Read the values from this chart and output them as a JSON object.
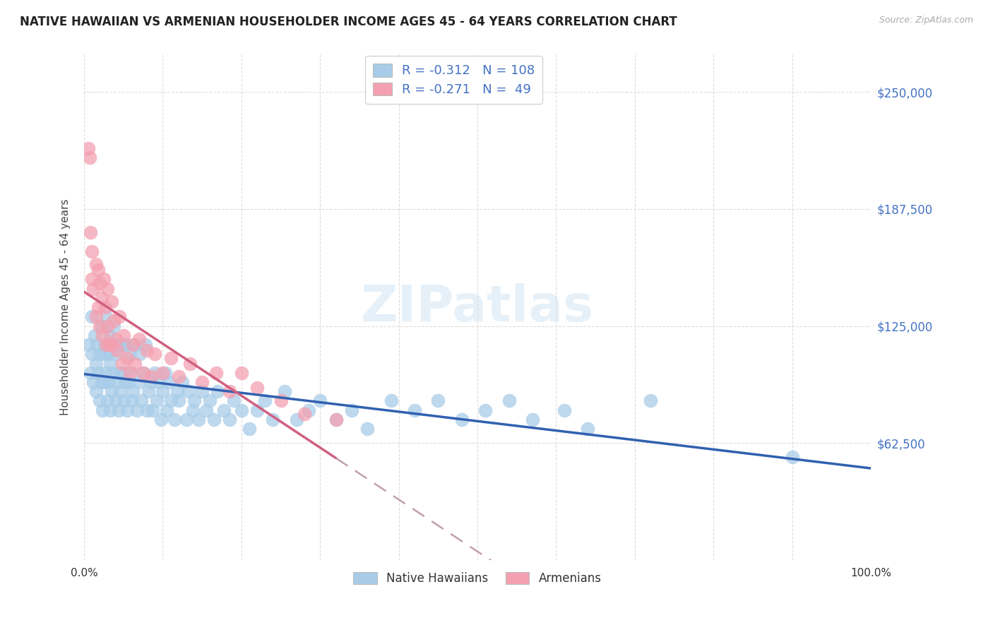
{
  "title": "NATIVE HAWAIIAN VS ARMENIAN HOUSEHOLDER INCOME AGES 45 - 64 YEARS CORRELATION CHART",
  "source": "Source: ZipAtlas.com",
  "ylabel": "Householder Income Ages 45 - 64 years",
  "ytick_labels": [
    "$62,500",
    "$125,000",
    "$187,500",
    "$250,000"
  ],
  "ytick_values": [
    62500,
    125000,
    187500,
    250000
  ],
  "ylim": [
    0,
    270000
  ],
  "xlim": [
    0,
    1
  ],
  "watermark": "ZIPatlas",
  "blue_scatter_color": "#a8cce8",
  "blue_edge_color": "#7ab0d4",
  "pink_scatter_color": "#f4a0b0",
  "pink_edge_color": "#e07090",
  "blue_line_color": "#3060b0",
  "pink_line_color": "#d06080",
  "pink_dash_color": "#c0a0a8",
  "legend_text_color": "#4472c4",
  "r_nh": -0.312,
  "n_nh": 108,
  "r_ar": -0.271,
  "n_ar": 49,
  "nh_x": [
    0.005,
    0.008,
    0.01,
    0.01,
    0.012,
    0.013,
    0.015,
    0.015,
    0.016,
    0.018,
    0.02,
    0.02,
    0.022,
    0.022,
    0.023,
    0.025,
    0.025,
    0.026,
    0.027,
    0.028,
    0.03,
    0.03,
    0.031,
    0.032,
    0.033,
    0.033,
    0.035,
    0.035,
    0.036,
    0.038,
    0.04,
    0.04,
    0.042,
    0.043,
    0.044,
    0.045,
    0.046,
    0.048,
    0.05,
    0.05,
    0.052,
    0.053,
    0.055,
    0.056,
    0.058,
    0.06,
    0.06,
    0.062,
    0.065,
    0.067,
    0.07,
    0.071,
    0.073,
    0.075,
    0.078,
    0.08,
    0.082,
    0.085,
    0.087,
    0.09,
    0.092,
    0.095,
    0.098,
    0.1,
    0.103,
    0.105,
    0.108,
    0.11,
    0.115,
    0.118,
    0.12,
    0.125,
    0.13,
    0.133,
    0.138,
    0.14,
    0.145,
    0.15,
    0.155,
    0.16,
    0.165,
    0.17,
    0.178,
    0.185,
    0.19,
    0.2,
    0.21,
    0.22,
    0.23,
    0.24,
    0.255,
    0.27,
    0.285,
    0.3,
    0.32,
    0.34,
    0.36,
    0.39,
    0.42,
    0.45,
    0.48,
    0.51,
    0.54,
    0.57,
    0.61,
    0.64,
    0.72,
    0.9
  ],
  "nh_y": [
    115000,
    100000,
    130000,
    110000,
    95000,
    120000,
    105000,
    90000,
    115000,
    100000,
    85000,
    110000,
    95000,
    125000,
    80000,
    110000,
    95000,
    115000,
    100000,
    130000,
    85000,
    110000,
    95000,
    120000,
    80000,
    105000,
    115000,
    90000,
    100000,
    125000,
    85000,
    110000,
    95000,
    115000,
    80000,
    100000,
    90000,
    115000,
    85000,
    100000,
    95000,
    115000,
    80000,
    95000,
    110000,
    85000,
    100000,
    90000,
    115000,
    80000,
    95000,
    110000,
    85000,
    100000,
    115000,
    80000,
    90000,
    95000,
    80000,
    100000,
    85000,
    95000,
    75000,
    90000,
    100000,
    80000,
    95000,
    85000,
    75000,
    90000,
    85000,
    95000,
    75000,
    90000,
    80000,
    85000,
    75000,
    90000,
    80000,
    85000,
    75000,
    90000,
    80000,
    75000,
    85000,
    80000,
    70000,
    80000,
    85000,
    75000,
    90000,
    75000,
    80000,
    85000,
    75000,
    80000,
    70000,
    85000,
    80000,
    85000,
    75000,
    80000,
    85000,
    75000,
    80000,
    70000,
    85000,
    55000
  ],
  "ar_x": [
    0.005,
    0.007,
    0.008,
    0.01,
    0.01,
    0.012,
    0.015,
    0.015,
    0.018,
    0.018,
    0.02,
    0.02,
    0.022,
    0.023,
    0.025,
    0.027,
    0.028,
    0.03,
    0.03,
    0.032,
    0.035,
    0.035,
    0.038,
    0.04,
    0.042,
    0.045,
    0.048,
    0.05,
    0.055,
    0.058,
    0.062,
    0.065,
    0.07,
    0.075,
    0.08,
    0.085,
    0.09,
    0.1,
    0.11,
    0.12,
    0.135,
    0.15,
    0.168,
    0.185,
    0.2,
    0.22,
    0.25,
    0.28,
    0.32
  ],
  "ar_y": [
    220000,
    215000,
    175000,
    165000,
    150000,
    145000,
    158000,
    130000,
    155000,
    135000,
    148000,
    125000,
    140000,
    120000,
    150000,
    135000,
    115000,
    145000,
    125000,
    115000,
    138000,
    115000,
    128000,
    118000,
    112000,
    130000,
    105000,
    120000,
    108000,
    100000,
    115000,
    105000,
    118000,
    100000,
    112000,
    98000,
    110000,
    100000,
    108000,
    98000,
    105000,
    95000,
    100000,
    90000,
    100000,
    92000,
    85000,
    78000,
    75000
  ]
}
